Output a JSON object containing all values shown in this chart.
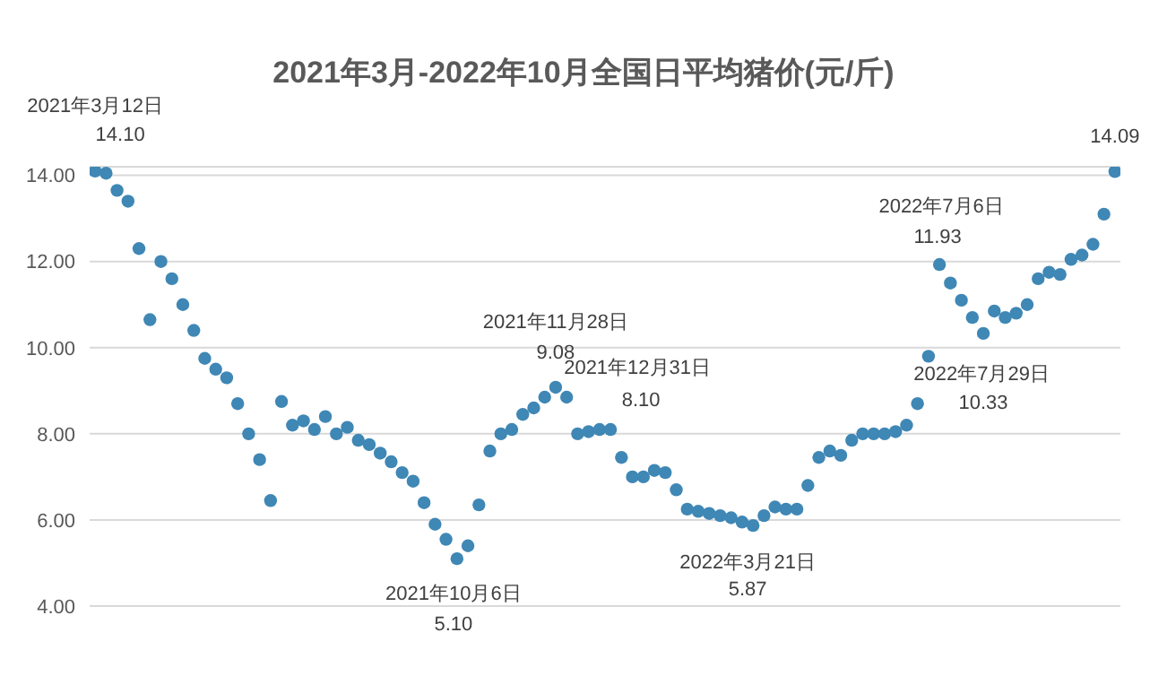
{
  "chart_data": {
    "type": "scatter",
    "title": "2021年3月-2022年10月全国日平均猪价(元/斤)",
    "categories": [
      null,
      null,
      null,
      null,
      null,
      null,
      null,
      null,
      null,
      null,
      null,
      null,
      null,
      null,
      null,
      null,
      null,
      null,
      null,
      null,
      null,
      null,
      null,
      null,
      null,
      null,
      null,
      null,
      null,
      null,
      null,
      null,
      null,
      null,
      null,
      null,
      null,
      null,
      null,
      null,
      null,
      null,
      null,
      null,
      null,
      null,
      null,
      null,
      null,
      null,
      null,
      null,
      null,
      null,
      null,
      null,
      null,
      null,
      null,
      null,
      null,
      null,
      null,
      null,
      null,
      null,
      null,
      null,
      null,
      null,
      null,
      null,
      null,
      null,
      null,
      null,
      null,
      null,
      null,
      null,
      null,
      null,
      null,
      null,
      null,
      null,
      null,
      null,
      null,
      null,
      null,
      null,
      null,
      null
    ],
    "ylim": [
      4,
      14.2
    ],
    "yticks": [
      {
        "value": 4,
        "label": "4.00"
      },
      {
        "value": 6,
        "label": "6.00"
      },
      {
        "value": 8,
        "label": "8.00"
      },
      {
        "value": 10,
        "label": "10.00"
      },
      {
        "value": 12,
        "label": "12.00"
      },
      {
        "value": 14,
        "label": "14.00"
      }
    ],
    "grid": "y",
    "tick_labels": "y",
    "marker": "circle",
    "legend": false,
    "series": [
      {
        "color": "#3f87b5",
        "values": [
          14.1,
          14.05,
          13.65,
          13.4,
          12.3,
          10.65,
          12.0,
          11.6,
          11.0,
          10.4,
          9.75,
          9.5,
          9.3,
          8.7,
          8.0,
          7.4,
          6.45,
          8.75,
          8.2,
          8.3,
          8.1,
          8.4,
          8.0,
          8.15,
          7.85,
          7.75,
          7.55,
          7.35,
          7.1,
          6.9,
          6.4,
          5.9,
          5.55,
          5.1,
          5.4,
          6.35,
          7.6,
          8.0,
          8.1,
          8.45,
          8.6,
          8.85,
          9.08,
          8.85,
          8.0,
          8.05,
          8.1,
          8.1,
          7.45,
          7.0,
          7.0,
          7.15,
          7.1,
          6.7,
          6.25,
          6.2,
          6.15,
          6.1,
          6.05,
          5.95,
          5.87,
          6.1,
          6.3,
          6.25,
          6.25,
          6.8,
          7.45,
          7.6,
          7.5,
          7.85,
          8.0,
          8.0,
          8.0,
          8.05,
          8.2,
          8.7,
          9.8,
          11.93,
          11.5,
          11.1,
          10.7,
          10.33,
          10.85,
          10.7,
          10.8,
          11.0,
          11.6,
          11.75,
          11.7,
          12.05,
          12.15,
          12.4,
          13.1,
          14.09
        ],
        "value_labels": [
          "14.10",
          null,
          null,
          null,
          null,
          null,
          null,
          null,
          null,
          null,
          null,
          null,
          null,
          null,
          null,
          null,
          null,
          null,
          null,
          null,
          null,
          null,
          null,
          null,
          null,
          null,
          null,
          null,
          null,
          null,
          null,
          null,
          null,
          "5.10",
          null,
          null,
          null,
          null,
          null,
          null,
          null,
          null,
          "9.08",
          null,
          null,
          null,
          null,
          "8.10",
          null,
          null,
          null,
          null,
          null,
          null,
          null,
          null,
          null,
          null,
          null,
          null,
          "5.87",
          null,
          null,
          null,
          null,
          null,
          null,
          null,
          null,
          null,
          null,
          null,
          null,
          null,
          null,
          null,
          null,
          "11.93",
          null,
          null,
          null,
          "10.33",
          null,
          null,
          null,
          null,
          null,
          null,
          null,
          null,
          null,
          null,
          null,
          "14.09"
        ]
      }
    ],
    "annotations": [
      "2021年3月12日",
      "2021年10月6日",
      "2021年11月28日",
      "2021年12月31日",
      "2022年3月21日",
      "2022年7月6日",
      "2022年7月29日"
    ]
  }
}
